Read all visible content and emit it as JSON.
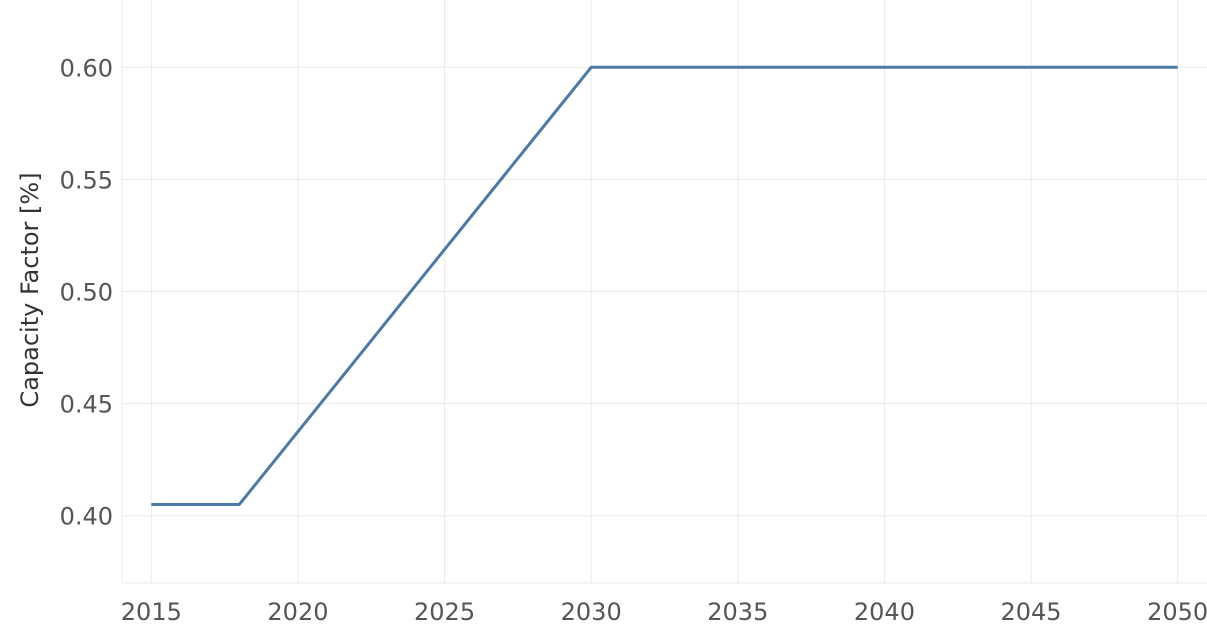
{
  "chart_data": {
    "type": "line",
    "title": "",
    "xlabel": "",
    "ylabel": "Capacity Factor [%]",
    "xlim": [
      2014,
      2051
    ],
    "ylim": [
      0.37,
      0.63
    ],
    "x_ticks": [
      2015,
      2020,
      2025,
      2030,
      2035,
      2040,
      2045,
      2050
    ],
    "y_ticks": [
      0.4,
      0.45,
      0.5,
      0.55,
      0.6
    ],
    "x_tick_labels": [
      "2015",
      "2020",
      "2025",
      "2030",
      "2035",
      "2040",
      "2045",
      "2050"
    ],
    "y_tick_labels": [
      "0.40",
      "0.45",
      "0.50",
      "0.55",
      "0.60"
    ],
    "grid": true,
    "legend": "none",
    "series": [
      {
        "color": "#4e79a7",
        "x": [
          2015,
          2018,
          2030,
          2050
        ],
        "y": [
          0.405,
          0.405,
          0.6,
          0.6
        ]
      }
    ]
  }
}
